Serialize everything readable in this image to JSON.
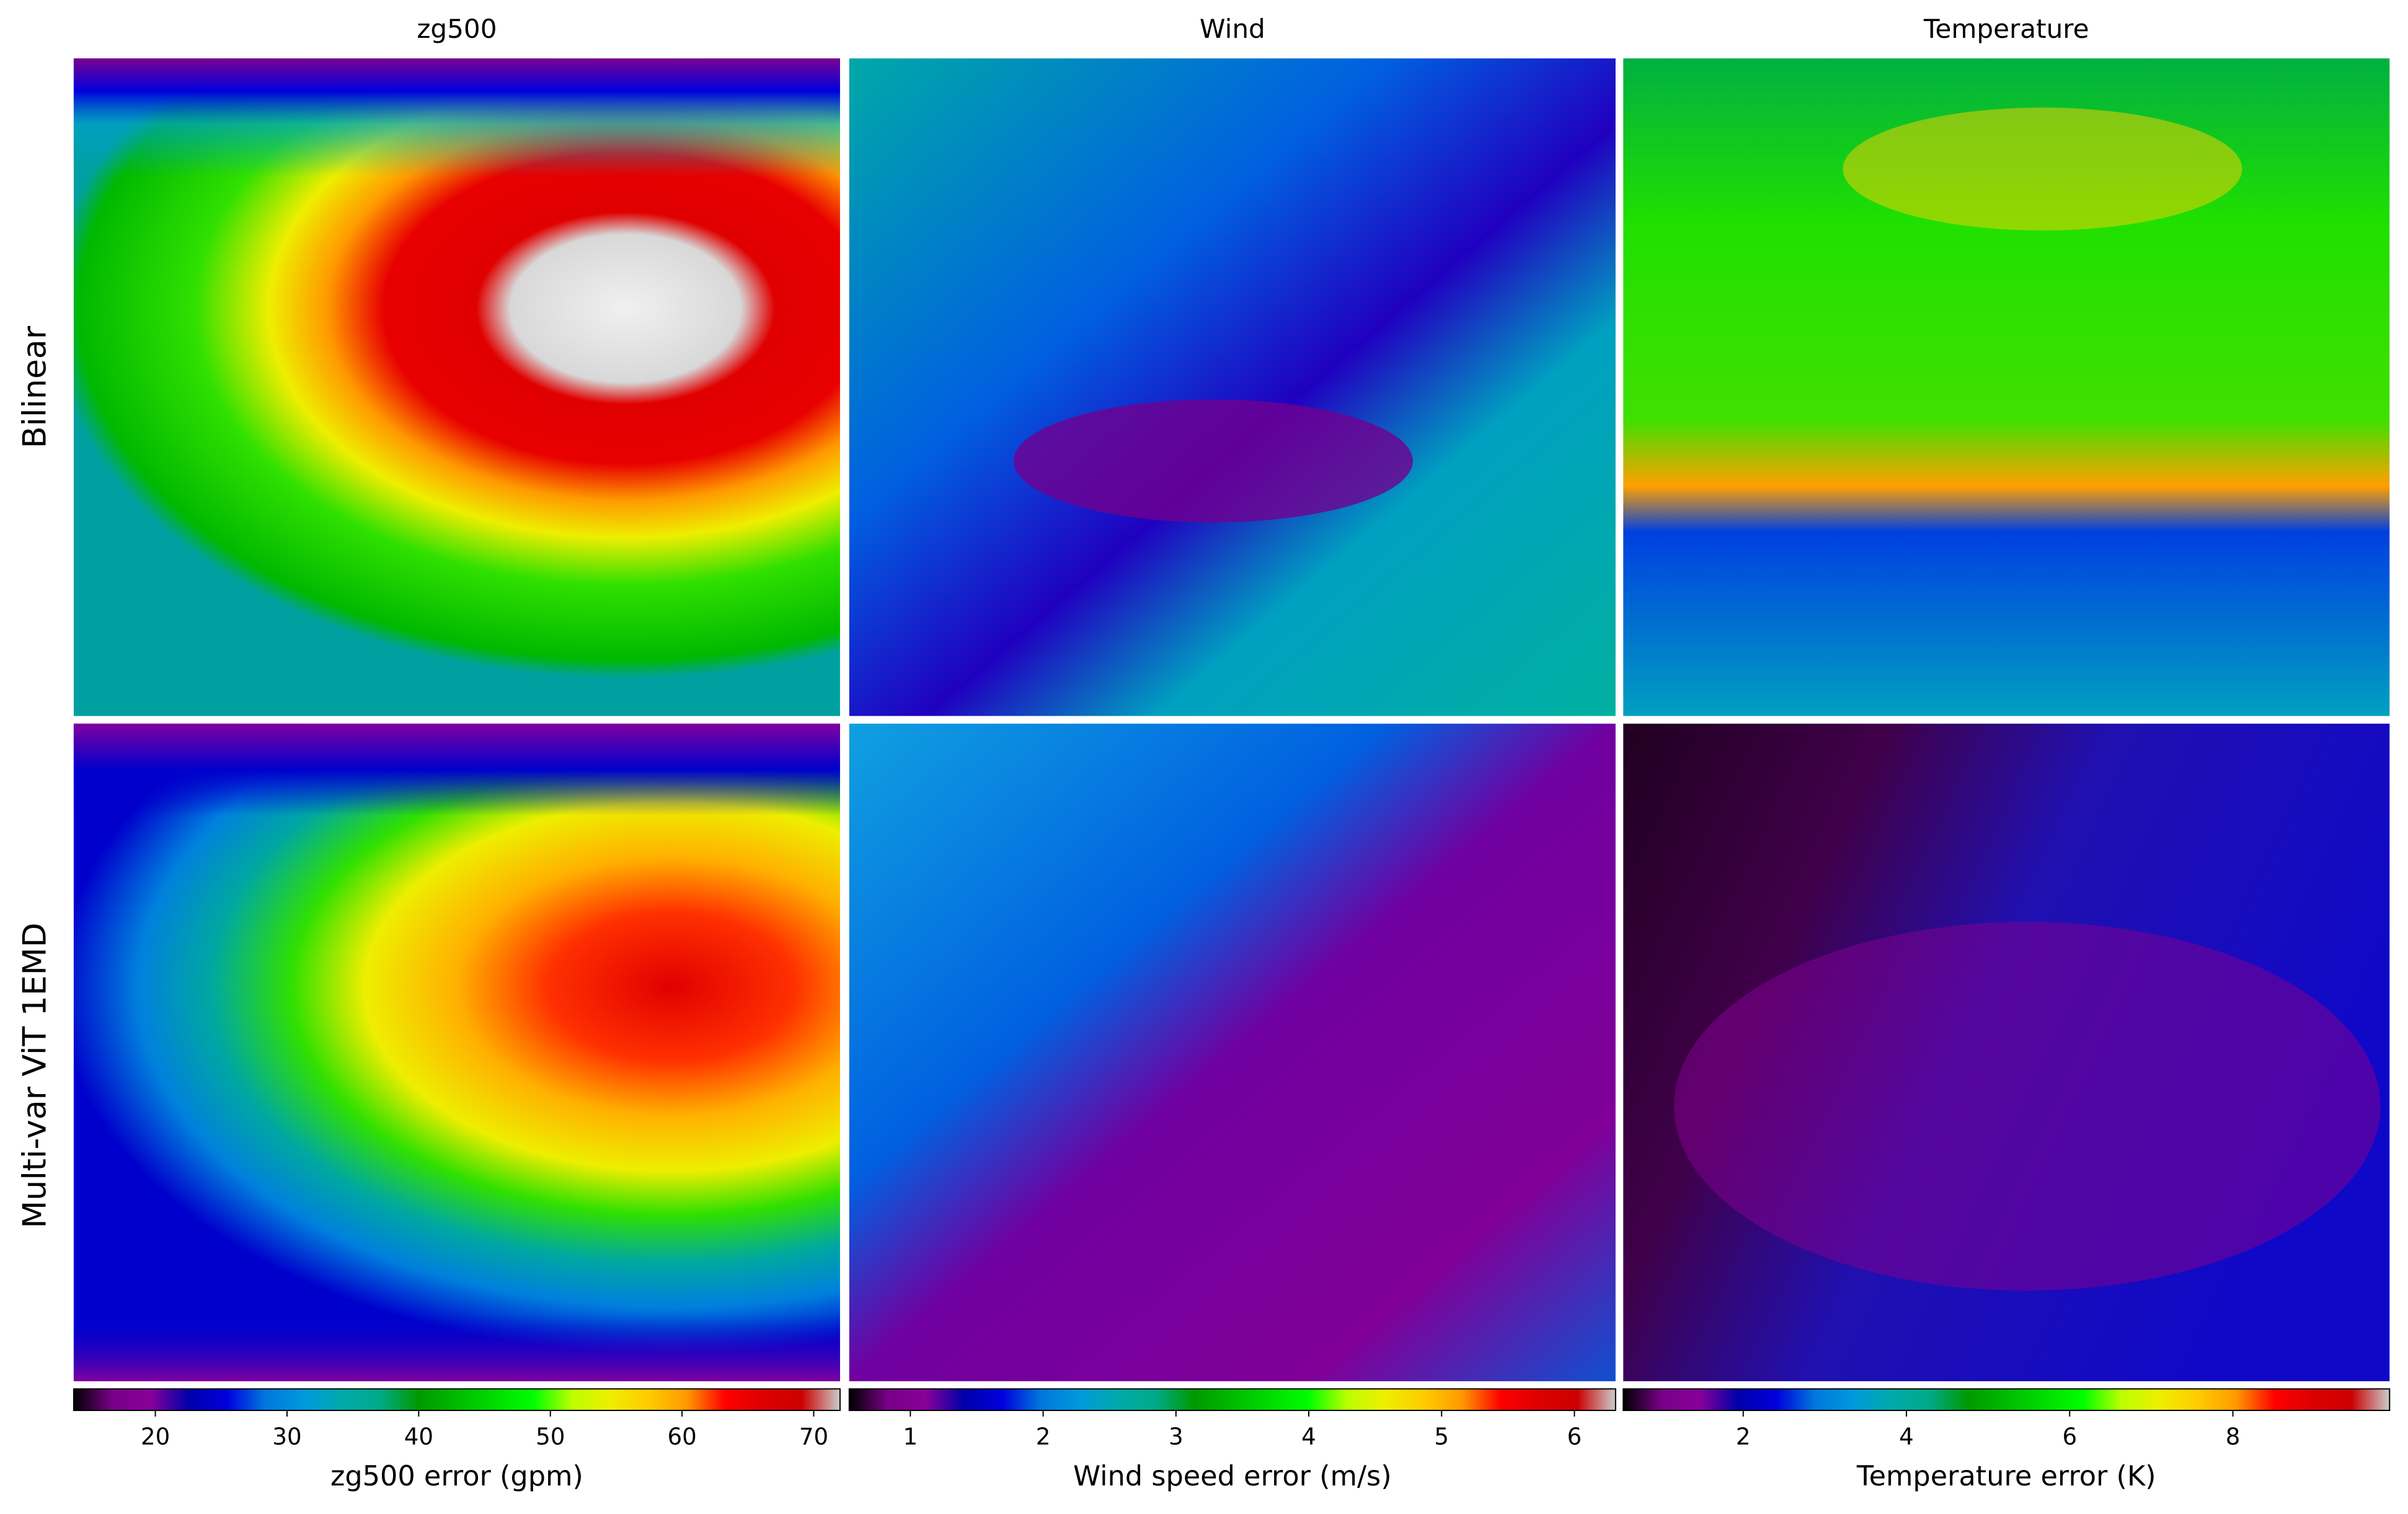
{
  "row_labels": [
    "Bilinear",
    "Multi-var ViT 1EMD"
  ],
  "chart_data": [
    {
      "type": "heatmap",
      "title": "zg500",
      "colorbar_label": "zg500 error (gpm)",
      "colormap": "nipy_spectral",
      "clim": [
        13.8,
        72
      ],
      "ticks": [
        20,
        30,
        40,
        50,
        60,
        70
      ]
    },
    {
      "type": "heatmap",
      "title": "Wind",
      "colorbar_label": "Wind speed error (m/s)",
      "colormap": "nipy_spectral",
      "clim": [
        0.54,
        6.31
      ],
      "ticks": [
        1,
        2,
        3,
        4,
        5,
        6
      ]
    },
    {
      "type": "heatmap",
      "title": "Temperature",
      "colorbar_label": "Temperature error (K)",
      "colormap": "nipy_spectral",
      "clim": [
        0.53,
        9.92
      ],
      "ticks": [
        2,
        4,
        6,
        8
      ]
    }
  ]
}
